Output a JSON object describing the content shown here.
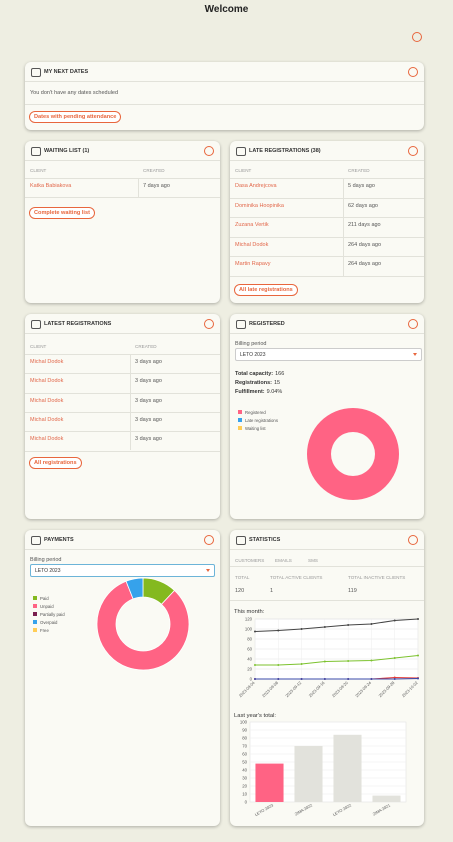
{
  "header": {
    "title": "Welcome"
  },
  "next_dates": {
    "title": "MY NEXT DATES",
    "message": "You don't have any dates scheduled",
    "button": "Dates with pending attendance"
  },
  "waiting_list": {
    "title": "WAITING LIST (1)",
    "columns": [
      "CLIENT",
      "CREATED"
    ],
    "rows": [
      [
        "Katka Babiakova",
        "7 days ago"
      ]
    ],
    "button": "Complete waiting list"
  },
  "late_registrations": {
    "title": "LATE REGISTRATIONS (38)",
    "columns": [
      "CLIENT",
      "CREATED"
    ],
    "rows": [
      [
        "Dasa Andrejcova",
        "5 days ago"
      ],
      [
        "Dominika Hoopinika",
        "62 days ago"
      ],
      [
        "Zuzana Vertik",
        "211 days ago"
      ],
      [
        "Michal Dodok",
        "264 days ago"
      ],
      [
        "Martin Rapavy",
        "264 days ago"
      ]
    ],
    "button": "All late registrations"
  },
  "latest_registrations": {
    "title": "LATEST REGISTRATIONS",
    "columns": [
      "CLIENT",
      "CREATED"
    ],
    "rows": [
      [
        "Michal Dodok",
        "3 days ago"
      ],
      [
        "Michal Dodok",
        "3 days ago"
      ],
      [
        "Michal Dodok",
        "3 days ago"
      ],
      [
        "Michal Dodok",
        "3 days ago"
      ],
      [
        "Michal Dodok",
        "3 days ago"
      ]
    ],
    "button": "All registrations"
  },
  "registered": {
    "title": "REGISTERED",
    "billing_label": "Billing period",
    "billing_value": "LETO 2023",
    "stats": [
      {
        "label": "Total capacity:",
        "value": "166"
      },
      {
        "label": "Registrations:",
        "value": "15"
      },
      {
        "label": "Fulfillment:",
        "value": "9.04%"
      }
    ],
    "chart": {
      "type": "pie",
      "donut": true,
      "categories": [
        "Registered",
        "Late registrations",
        "Waiting list"
      ],
      "values": [
        100,
        0,
        0
      ],
      "colors": [
        "#ff6384",
        "#36a2eb",
        "#ffcd56"
      ]
    }
  },
  "payments": {
    "title": "PAYMENTS",
    "billing_label": "Billing period",
    "billing_value": "LETO 2023",
    "chart": {
      "type": "pie",
      "donut": true,
      "categories": [
        "Paid",
        "Unpaid",
        "Partially paid",
        "Overpaid",
        "Free"
      ],
      "values": [
        12,
        82,
        0,
        6,
        0
      ],
      "colors": [
        "#84b91f",
        "#ff6384",
        "#7a1f4f",
        "#36a2eb",
        "#ffcd56"
      ]
    }
  },
  "statistics": {
    "title": "STATISTICS",
    "tabs": [
      "CUSTOMERS",
      "EMAILS",
      "SMS"
    ],
    "totals": [
      {
        "label": "TOTAL",
        "value": "120"
      },
      {
        "label": "TOTAL ACTIVE CLIENTS",
        "value": "1"
      },
      {
        "label": "TOTAL INACTIVE CLIENTS",
        "value": "119"
      }
    ],
    "line_chart": {
      "type": "line",
      "title": "This month:",
      "categories": [
        "2023-09-04",
        "2023-09-08",
        "2023-09-12",
        "2023-09-16",
        "2023-09-20",
        "2023-09-24",
        "2023-09-28",
        "2023-10-02"
      ],
      "series": [
        {
          "color": "#444444",
          "values": [
            95,
            97,
            100,
            104,
            108,
            110,
            117,
            120
          ]
        },
        {
          "color": "#7cc22e",
          "values": [
            28,
            28,
            30,
            35,
            36,
            37,
            42,
            47
          ]
        },
        {
          "color": "#e53935",
          "values": [
            0,
            0,
            0,
            0,
            0,
            0,
            3,
            2
          ]
        },
        {
          "color": "#3949ab",
          "values": [
            0,
            0,
            0,
            0,
            0,
            0,
            0,
            1
          ]
        }
      ],
      "ylim": [
        0,
        120
      ],
      "yticks": [
        0,
        20,
        40,
        60,
        80,
        100,
        120
      ],
      "grid": true
    },
    "bar_chart": {
      "type": "bar",
      "title": "Last year's total:",
      "categories": [
        "LETO 2023",
        "ZIMA 2022",
        "LETO 2022",
        "ZIMA 2021"
      ],
      "values": [
        48,
        70,
        84,
        8
      ],
      "colors": [
        "#ff6384",
        "#e2e2dc",
        "#e2e2dc",
        "#e2e2dc"
      ],
      "ylim": [
        0,
        100
      ],
      "yticks": [
        0,
        10,
        20,
        30,
        40,
        50,
        60,
        70,
        80,
        90,
        100
      ],
      "grid": true
    }
  }
}
